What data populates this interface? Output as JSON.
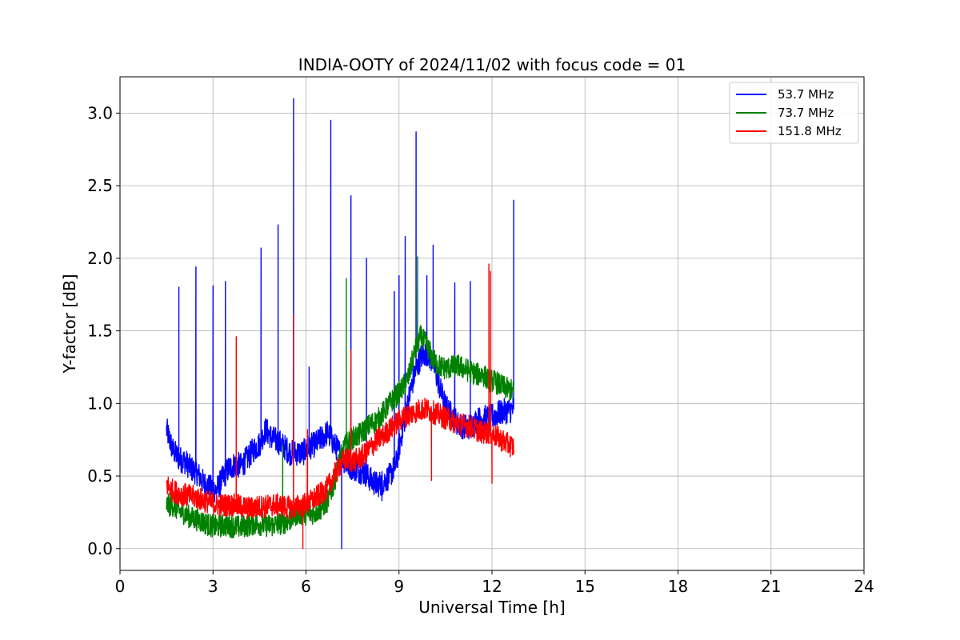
{
  "chart_data": {
    "type": "line",
    "title": "INDIA-OOTY of 2024/11/02 with focus code = 01",
    "xlabel": "Universal Time [h]",
    "ylabel": "Y-factor [dB]",
    "xlim": [
      0,
      24
    ],
    "ylim": [
      -0.15,
      3.25
    ],
    "xticks": [
      0,
      3,
      6,
      9,
      12,
      15,
      18,
      21,
      24
    ],
    "xtick_labels": [
      "0",
      "3",
      "6",
      "9",
      "12",
      "15",
      "18",
      "21",
      "24"
    ],
    "yticks": [
      0.0,
      0.5,
      1.0,
      1.5,
      2.0,
      2.5,
      3.0
    ],
    "ytick_labels": [
      "0.0",
      "0.5",
      "1.0",
      "1.5",
      "2.0",
      "2.5",
      "3.0"
    ],
    "grid": true,
    "legend_position": "top-right",
    "series": [
      {
        "name": "53.7 MHz",
        "color": "#0000ff",
        "points": [
          [
            1.5,
            0.82
          ],
          [
            1.7,
            0.68
          ],
          [
            1.9,
            0.62
          ],
          [
            2.1,
            0.6
          ],
          [
            2.3,
            0.55
          ],
          [
            2.5,
            0.52
          ],
          [
            2.7,
            0.45
          ],
          [
            2.9,
            0.42
          ],
          [
            3.1,
            0.4
          ],
          [
            3.3,
            0.48
          ],
          [
            3.5,
            0.55
          ],
          [
            3.7,
            0.58
          ],
          [
            3.9,
            0.57
          ],
          [
            4.1,
            0.62
          ],
          [
            4.3,
            0.68
          ],
          [
            4.5,
            0.72
          ],
          [
            4.7,
            0.82
          ],
          [
            4.9,
            0.76
          ],
          [
            5.1,
            0.74
          ],
          [
            5.3,
            0.7
          ],
          [
            5.5,
            0.66
          ],
          [
            5.7,
            0.66
          ],
          [
            5.9,
            0.66
          ],
          [
            6.1,
            0.7
          ],
          [
            6.3,
            0.72
          ],
          [
            6.5,
            0.76
          ],
          [
            6.7,
            0.8
          ],
          [
            6.9,
            0.72
          ],
          [
            7.1,
            0.66
          ],
          [
            7.3,
            0.58
          ],
          [
            7.5,
            0.56
          ],
          [
            7.7,
            0.54
          ],
          [
            7.9,
            0.52
          ],
          [
            8.1,
            0.47
          ],
          [
            8.3,
            0.44
          ],
          [
            8.5,
            0.46
          ],
          [
            8.7,
            0.5
          ],
          [
            8.9,
            0.58
          ],
          [
            9.1,
            0.8
          ],
          [
            9.3,
            1.02
          ],
          [
            9.5,
            1.2
          ],
          [
            9.7,
            1.32
          ],
          [
            9.9,
            1.35
          ],
          [
            10.1,
            1.28
          ],
          [
            10.3,
            1.12
          ],
          [
            10.5,
            0.98
          ],
          [
            10.7,
            0.92
          ],
          [
            10.9,
            0.86
          ],
          [
            11.1,
            0.84
          ],
          [
            11.3,
            0.84
          ],
          [
            11.5,
            0.88
          ],
          [
            11.7,
            0.9
          ],
          [
            11.9,
            0.9
          ],
          [
            12.1,
            0.92
          ],
          [
            12.3,
            0.94
          ],
          [
            12.5,
            0.95
          ],
          [
            12.7,
            0.96
          ]
        ],
        "spikes": [
          [
            1.9,
            1.8
          ],
          [
            2.45,
            1.94
          ],
          [
            3.0,
            1.81
          ],
          [
            3.4,
            1.84
          ],
          [
            4.55,
            2.07
          ],
          [
            5.1,
            2.23
          ],
          [
            5.6,
            3.1
          ],
          [
            6.1,
            1.25
          ],
          [
            6.8,
            2.95
          ],
          [
            7.45,
            2.43
          ],
          [
            7.95,
            2.0
          ],
          [
            8.85,
            1.77
          ],
          [
            9.0,
            1.88
          ],
          [
            9.2,
            2.15
          ],
          [
            9.55,
            2.87
          ],
          [
            9.9,
            1.88
          ],
          [
            10.1,
            2.09
          ],
          [
            10.8,
            1.83
          ],
          [
            11.3,
            1.84
          ],
          [
            12.7,
            2.4
          ]
        ],
        "dips": [
          [
            7.15,
            0.0
          ],
          [
            8.45,
            0.33
          ]
        ],
        "noise": 0.09
      },
      {
        "name": "73.7 MHz",
        "color": "#008000",
        "points": [
          [
            1.5,
            0.3
          ],
          [
            1.7,
            0.3
          ],
          [
            1.9,
            0.26
          ],
          [
            2.1,
            0.24
          ],
          [
            2.3,
            0.21
          ],
          [
            2.5,
            0.2
          ],
          [
            2.7,
            0.18
          ],
          [
            2.9,
            0.16
          ],
          [
            3.1,
            0.15
          ],
          [
            3.3,
            0.16
          ],
          [
            3.5,
            0.16
          ],
          [
            3.7,
            0.15
          ],
          [
            3.9,
            0.15
          ],
          [
            4.1,
            0.16
          ],
          [
            4.3,
            0.17
          ],
          [
            4.5,
            0.17
          ],
          [
            4.7,
            0.16
          ],
          [
            4.9,
            0.16
          ],
          [
            5.1,
            0.17
          ],
          [
            5.3,
            0.18
          ],
          [
            5.5,
            0.2
          ],
          [
            5.7,
            0.24
          ],
          [
            5.9,
            0.24
          ],
          [
            6.1,
            0.24
          ],
          [
            6.3,
            0.25
          ],
          [
            6.5,
            0.28
          ],
          [
            6.7,
            0.33
          ],
          [
            6.9,
            0.45
          ],
          [
            7.1,
            0.62
          ],
          [
            7.3,
            0.72
          ],
          [
            7.5,
            0.76
          ],
          [
            7.7,
            0.78
          ],
          [
            7.9,
            0.82
          ],
          [
            8.1,
            0.86
          ],
          [
            8.3,
            0.88
          ],
          [
            8.5,
            0.94
          ],
          [
            8.7,
            1.0
          ],
          [
            8.9,
            1.05
          ],
          [
            9.1,
            1.1
          ],
          [
            9.3,
            1.18
          ],
          [
            9.5,
            1.35
          ],
          [
            9.7,
            1.46
          ],
          [
            9.9,
            1.4
          ],
          [
            10.1,
            1.3
          ],
          [
            10.3,
            1.26
          ],
          [
            10.5,
            1.24
          ],
          [
            10.7,
            1.25
          ],
          [
            10.9,
            1.26
          ],
          [
            11.1,
            1.24
          ],
          [
            11.3,
            1.22
          ],
          [
            11.5,
            1.2
          ],
          [
            11.7,
            1.2
          ],
          [
            11.9,
            1.16
          ],
          [
            12.1,
            1.15
          ],
          [
            12.3,
            1.12
          ],
          [
            12.5,
            1.1
          ],
          [
            12.7,
            1.08
          ]
        ],
        "spikes": [
          [
            7.3,
            1.86
          ],
          [
            9.6,
            2.01
          ],
          [
            6.05,
            0.72
          ],
          [
            5.25,
            0.72
          ]
        ],
        "dips": [],
        "noise": 0.08
      },
      {
        "name": "151.8 MHz",
        "color": "#ff0000",
        "points": [
          [
            1.5,
            0.44
          ],
          [
            1.7,
            0.4
          ],
          [
            1.9,
            0.38
          ],
          [
            2.1,
            0.37
          ],
          [
            2.3,
            0.36
          ],
          [
            2.5,
            0.35
          ],
          [
            2.7,
            0.33
          ],
          [
            2.9,
            0.32
          ],
          [
            3.1,
            0.3
          ],
          [
            3.3,
            0.3
          ],
          [
            3.5,
            0.3
          ],
          [
            3.7,
            0.3
          ],
          [
            3.9,
            0.29
          ],
          [
            4.1,
            0.28
          ],
          [
            4.3,
            0.28
          ],
          [
            4.5,
            0.29
          ],
          [
            4.7,
            0.29
          ],
          [
            4.9,
            0.3
          ],
          [
            5.1,
            0.3
          ],
          [
            5.3,
            0.29
          ],
          [
            5.5,
            0.28
          ],
          [
            5.7,
            0.29
          ],
          [
            5.9,
            0.3
          ],
          [
            6.1,
            0.32
          ],
          [
            6.3,
            0.35
          ],
          [
            6.5,
            0.38
          ],
          [
            6.7,
            0.42
          ],
          [
            6.9,
            0.5
          ],
          [
            7.1,
            0.58
          ],
          [
            7.3,
            0.62
          ],
          [
            7.5,
            0.6
          ],
          [
            7.7,
            0.62
          ],
          [
            7.9,
            0.65
          ],
          [
            8.1,
            0.7
          ],
          [
            8.3,
            0.75
          ],
          [
            8.5,
            0.78
          ],
          [
            8.7,
            0.82
          ],
          [
            8.9,
            0.86
          ],
          [
            9.1,
            0.9
          ],
          [
            9.3,
            0.92
          ],
          [
            9.5,
            0.94
          ],
          [
            9.7,
            0.96
          ],
          [
            9.9,
            0.96
          ],
          [
            10.1,
            0.94
          ],
          [
            10.3,
            0.92
          ],
          [
            10.5,
            0.9
          ],
          [
            10.7,
            0.88
          ],
          [
            10.9,
            0.86
          ],
          [
            11.1,
            0.85
          ],
          [
            11.3,
            0.84
          ],
          [
            11.5,
            0.82
          ],
          [
            11.7,
            0.8
          ],
          [
            11.9,
            0.8
          ],
          [
            12.1,
            0.78
          ],
          [
            12.3,
            0.75
          ],
          [
            12.5,
            0.72
          ],
          [
            12.7,
            0.7
          ]
        ],
        "spikes": [
          [
            3.75,
            1.46
          ],
          [
            5.6,
            1.61
          ],
          [
            6.05,
            0.82
          ],
          [
            7.45,
            1.37
          ],
          [
            11.9,
            1.96
          ],
          [
            11.95,
            1.91
          ]
        ],
        "dips": [
          [
            5.9,
            0.0
          ],
          [
            10.05,
            0.47
          ],
          [
            12.0,
            0.45
          ]
        ],
        "noise": 0.08
      }
    ]
  }
}
